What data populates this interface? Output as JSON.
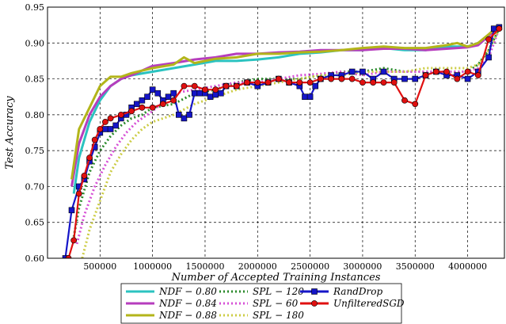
{
  "chart_data": {
    "type": "line",
    "xlabel": "Number of Accepted Training Instances",
    "ylabel": "Test Accuracy",
    "xlim": [
      0,
      4350000
    ],
    "ylim": [
      0.6,
      0.95
    ],
    "x_ticks": [
      500000,
      1000000,
      1500000,
      2000000,
      2500000,
      3000000,
      3500000,
      4000000
    ],
    "x_tick_labels": [
      "500000",
      "1000000",
      "1500000",
      "2000000",
      "2500000",
      "3000000",
      "3500000",
      "4000000"
    ],
    "y_ticks": [
      0.6,
      0.65,
      0.7,
      0.75,
      0.8,
      0.85,
      0.9,
      0.95
    ],
    "y_tick_labels": [
      "0.60",
      "0.65",
      "0.70",
      "0.75",
      "0.80",
      "0.85",
      "0.90",
      "0.95"
    ],
    "grid": true,
    "legend_position": "below",
    "series": [
      {
        "name": "NDF − 0.80",
        "color": "#2bc3c0",
        "style": "solid",
        "x": [
          250000,
          300000,
          400000,
          500000,
          600000,
          700000,
          800000,
          1000000,
          1200000,
          1400000,
          1600000,
          1800000,
          2000000,
          2200000,
          2400000,
          2600000,
          2800000,
          3000000,
          3200000,
          3400000,
          3600000,
          3800000,
          4000000,
          4100000,
          4200000,
          4300000
        ],
        "y": [
          0.69,
          0.74,
          0.79,
          0.82,
          0.84,
          0.85,
          0.855,
          0.86,
          0.865,
          0.87,
          0.875,
          0.875,
          0.877,
          0.88,
          0.885,
          0.887,
          0.89,
          0.89,
          0.893,
          0.89,
          0.89,
          0.895,
          0.895,
          0.9,
          0.91,
          0.925
        ]
      },
      {
        "name": "NDF − 0.84",
        "color": "#b63dbd",
        "style": "solid",
        "x": [
          230000,
          300000,
          400000,
          500000,
          600000,
          700000,
          800000,
          1000000,
          1200000,
          1400000,
          1600000,
          1800000,
          2000000,
          2200000,
          2400000,
          2600000,
          2800000,
          3000000,
          3200000,
          3400000,
          3600000,
          3800000,
          4000000,
          4100000,
          4200000,
          4300000
        ],
        "y": [
          0.7,
          0.76,
          0.8,
          0.825,
          0.84,
          0.85,
          0.855,
          0.868,
          0.872,
          0.877,
          0.88,
          0.885,
          0.885,
          0.887,
          0.888,
          0.89,
          0.89,
          0.89,
          0.892,
          0.892,
          0.89,
          0.892,
          0.894,
          0.897,
          0.91,
          0.922
        ]
      },
      {
        "name": "NDF − 0.88",
        "color": "#b3b51a",
        "style": "solid",
        "x": [
          230000,
          300000,
          400000,
          500000,
          600000,
          700000,
          800000,
          1000000,
          1200000,
          1300000,
          1400000,
          1600000,
          1800000,
          2000000,
          2200000,
          2400000,
          2600000,
          2800000,
          3000000,
          3200000,
          3400000,
          3600000,
          3800000,
          3900000,
          4000000,
          4100000,
          4200000,
          4300000
        ],
        "y": [
          0.71,
          0.78,
          0.81,
          0.84,
          0.853,
          0.853,
          0.858,
          0.865,
          0.87,
          0.88,
          0.872,
          0.878,
          0.88,
          0.885,
          0.885,
          0.887,
          0.888,
          0.89,
          0.893,
          0.895,
          0.893,
          0.893,
          0.897,
          0.9,
          0.895,
          0.9,
          0.912,
          0.925
        ]
      },
      {
        "name": "SPL − 120",
        "color": "#2a8a2a",
        "style": "dotted",
        "x": [
          250000,
          300000,
          400000,
          500000,
          600000,
          700000,
          800000,
          900000,
          1000000,
          1200000,
          1400000,
          1600000,
          1800000,
          2000000,
          2200000,
          2400000,
          2600000,
          2800000,
          3000000,
          3200000,
          3400000,
          3600000,
          3800000,
          4000000,
          4100000,
          4200000,
          4300000
        ],
        "y": [
          0.63,
          0.67,
          0.72,
          0.75,
          0.77,
          0.785,
          0.795,
          0.8,
          0.81,
          0.815,
          0.83,
          0.835,
          0.845,
          0.85,
          0.85,
          0.85,
          0.855,
          0.86,
          0.86,
          0.865,
          0.86,
          0.86,
          0.86,
          0.86,
          0.87,
          0.89,
          0.92
        ]
      },
      {
        "name": "SPL − 60",
        "color": "#d64fd6",
        "style": "dotted",
        "x": [
          280000,
          350000,
          450000,
          550000,
          650000,
          750000,
          850000,
          1000000,
          1200000,
          1400000,
          1600000,
          1800000,
          2000000,
          2200000,
          2400000,
          2600000,
          2800000,
          3000000,
          3200000,
          3400000,
          3600000,
          3800000,
          4000000,
          4100000,
          4200000,
          4300000
        ],
        "y": [
          0.62,
          0.66,
          0.7,
          0.73,
          0.755,
          0.775,
          0.79,
          0.805,
          0.83,
          0.835,
          0.84,
          0.845,
          0.845,
          0.85,
          0.855,
          0.857,
          0.86,
          0.855,
          0.86,
          0.86,
          0.86,
          0.86,
          0.86,
          0.865,
          0.88,
          0.92
        ]
      },
      {
        "name": "SPL − 180",
        "color": "#cccc44",
        "style": "dotted",
        "x": [
          330000,
          400000,
          500000,
          600000,
          700000,
          800000,
          900000,
          1000000,
          1200000,
          1400000,
          1600000,
          1800000,
          2000000,
          2200000,
          2400000,
          2600000,
          2800000,
          3000000,
          3200000,
          3400000,
          3600000,
          3800000,
          4000000,
          4100000,
          4200000,
          4300000
        ],
        "y": [
          0.6,
          0.64,
          0.68,
          0.72,
          0.745,
          0.765,
          0.78,
          0.79,
          0.8,
          0.815,
          0.825,
          0.835,
          0.84,
          0.845,
          0.85,
          0.855,
          0.855,
          0.86,
          0.86,
          0.86,
          0.865,
          0.865,
          0.865,
          0.87,
          0.89,
          0.92
        ]
      },
      {
        "name": "RandDrop",
        "color": "#1515c8",
        "style": "solid",
        "marker": "square",
        "x": [
          170000,
          230000,
          300000,
          350000,
          400000,
          450000,
          500000,
          550000,
          600000,
          650000,
          700000,
          750000,
          800000,
          850000,
          900000,
          950000,
          1000000,
          1050000,
          1100000,
          1150000,
          1200000,
          1250000,
          1300000,
          1350000,
          1400000,
          1450000,
          1500000,
          1550000,
          1600000,
          1650000,
          1700000,
          1800000,
          1900000,
          2000000,
          2100000,
          2200000,
          2300000,
          2400000,
          2450000,
          2500000,
          2550000,
          2600000,
          2700000,
          2800000,
          2900000,
          3000000,
          3100000,
          3200000,
          3300000,
          3400000,
          3500000,
          3600000,
          3700000,
          3800000,
          3900000,
          4000000,
          4100000,
          4200000,
          4250000,
          4300000
        ],
        "y": [
          0.6,
          0.667,
          0.7,
          0.71,
          0.735,
          0.755,
          0.775,
          0.78,
          0.78,
          0.785,
          0.795,
          0.8,
          0.81,
          0.815,
          0.82,
          0.825,
          0.835,
          0.83,
          0.82,
          0.825,
          0.83,
          0.8,
          0.795,
          0.8,
          0.83,
          0.83,
          0.83,
          0.825,
          0.828,
          0.83,
          0.84,
          0.84,
          0.845,
          0.84,
          0.845,
          0.85,
          0.845,
          0.84,
          0.825,
          0.825,
          0.84,
          0.85,
          0.855,
          0.855,
          0.86,
          0.86,
          0.85,
          0.86,
          0.85,
          0.85,
          0.85,
          0.855,
          0.86,
          0.855,
          0.855,
          0.85,
          0.86,
          0.88,
          0.92,
          0.922
        ]
      },
      {
        "name": "UnfilteredSGD",
        "color": "#e01010",
        "style": "solid",
        "marker": "circle",
        "x": [
          200000,
          250000,
          300000,
          350000,
          400000,
          450000,
          500000,
          550000,
          600000,
          700000,
          800000,
          900000,
          1000000,
          1100000,
          1200000,
          1300000,
          1400000,
          1500000,
          1600000,
          1700000,
          1800000,
          1900000,
          2000000,
          2100000,
          2200000,
          2300000,
          2400000,
          2500000,
          2600000,
          2700000,
          2800000,
          2900000,
          3000000,
          3100000,
          3200000,
          3300000,
          3400000,
          3500000,
          3600000,
          3700000,
          3800000,
          3900000,
          4000000,
          4100000,
          4200000,
          4300000
        ],
        "y": [
          0.6,
          0.625,
          0.69,
          0.715,
          0.74,
          0.765,
          0.78,
          0.79,
          0.795,
          0.8,
          0.805,
          0.81,
          0.81,
          0.815,
          0.82,
          0.84,
          0.84,
          0.835,
          0.835,
          0.84,
          0.84,
          0.845,
          0.845,
          0.845,
          0.85,
          0.845,
          0.845,
          0.845,
          0.85,
          0.85,
          0.85,
          0.85,
          0.845,
          0.845,
          0.845,
          0.845,
          0.82,
          0.815,
          0.855,
          0.86,
          0.86,
          0.85,
          0.86,
          0.855,
          0.905,
          0.92
        ]
      }
    ]
  }
}
